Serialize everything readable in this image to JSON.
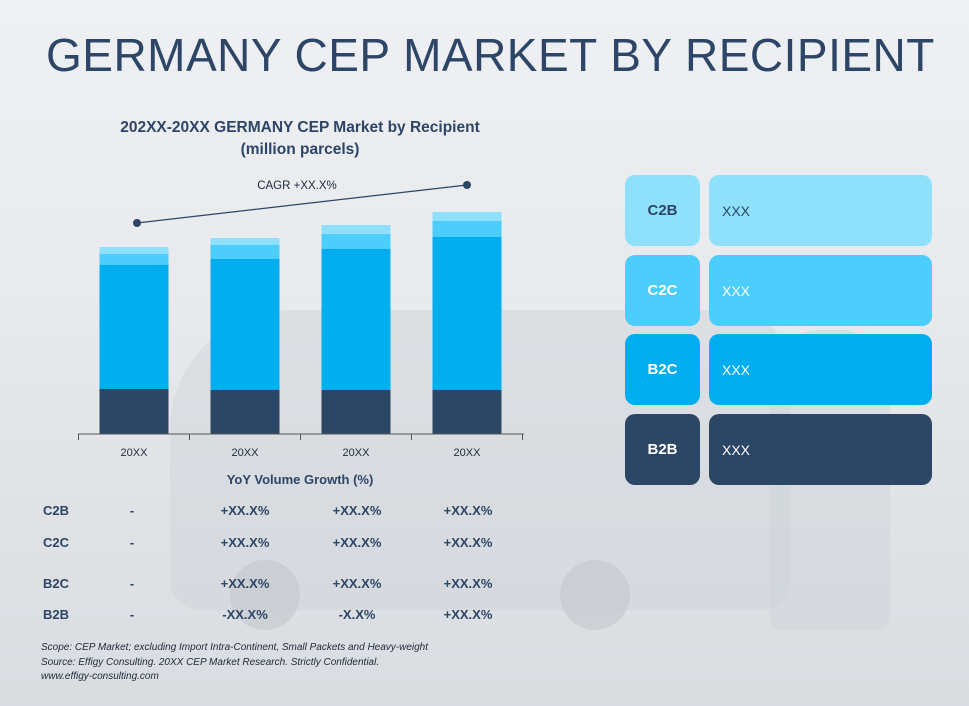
{
  "page": {
    "title": "GERMANY CEP MARKET BY RECIPIENT"
  },
  "chart_title": {
    "line1": "202XX-20XX GERMANY CEP Market by Recipient",
    "line2": "(million parcels)"
  },
  "colors": {
    "C2B": "#8fe1fb",
    "C2C": "#4dcdfb",
    "B2C": "#00aeef",
    "B2B": "#2c4666",
    "title": "#2d4566"
  },
  "chart_data": {
    "type": "bar",
    "stacked": true,
    "categories": [
      "20XX",
      "20XX",
      "20XX",
      "20XX"
    ],
    "series": [
      {
        "name": "B2B",
        "values": [
          45,
          44,
          44,
          44
        ]
      },
      {
        "name": "B2C",
        "values": [
          124,
          131,
          141,
          153
        ]
      },
      {
        "name": "C2C",
        "values": [
          11,
          14,
          15,
          16
        ]
      },
      {
        "name": "C2B",
        "values": [
          7,
          7,
          9,
          9
        ]
      }
    ],
    "ylim": [
      0,
      240
    ],
    "cagr_label": "CAGR +XX.X%",
    "grid": false
  },
  "yoy": {
    "title": "YoY Volume Growth (%)",
    "rows": [
      {
        "label": "C2B",
        "values": [
          "-",
          "+XX.X%",
          "+XX.X%",
          "+XX.X%"
        ]
      },
      {
        "label": "C2C",
        "values": [
          "-",
          "+XX.X%",
          "+XX.X%",
          "+XX.X%"
        ]
      },
      {
        "label": "B2C",
        "values": [
          "-",
          "+XX.X%",
          "+XX.X%",
          "+XX.X%"
        ]
      },
      {
        "label": "B2B",
        "values": [
          "-",
          "-XX.X%",
          "-X.X%",
          "+XX.X%"
        ]
      }
    ]
  },
  "legend": [
    {
      "key": "C2B",
      "value": "XXX"
    },
    {
      "key": "C2C",
      "value": "XXX"
    },
    {
      "key": "B2C",
      "value": "XXX"
    },
    {
      "key": "B2B",
      "value": "XXX"
    }
  ],
  "footnote": {
    "line1": "Scope: CEP Market; excluding Import Intra-Continent, Small Packets and Heavy-weight",
    "line2": "Source: Effigy Consulting. 20XX CEP Market Research. Strictly Confidential.",
    "line3": "www.effigy-consulting.com"
  }
}
